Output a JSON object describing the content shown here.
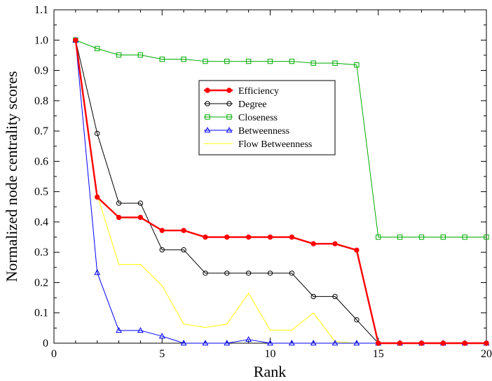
{
  "chart_data": {
    "type": "line",
    "xlabel": "Rank",
    "ylabel": "Normalized node centrality scores",
    "xlim": [
      0,
      20
    ],
    "ylim": [
      0,
      1.1
    ],
    "x_ticks": [
      "0",
      "5",
      "10",
      "15",
      "20"
    ],
    "y_ticks": [
      "0",
      "0.1",
      "0.2",
      "0.3",
      "0.4",
      "0.5",
      "0.6",
      "0.7",
      "0.8",
      "0.9",
      "1.0",
      "1.1"
    ],
    "grid": false,
    "legend_position": "center",
    "x": [
      1,
      2,
      3,
      4,
      5,
      6,
      7,
      8,
      9,
      10,
      11,
      12,
      13,
      14,
      15,
      16,
      17,
      18,
      19,
      20
    ],
    "series": [
      {
        "name": "Efficiency",
        "color": "#ff0000",
        "marker": "filled-circle",
        "values": [
          1.0,
          0.482,
          0.415,
          0.415,
          0.372,
          0.372,
          0.35,
          0.35,
          0.35,
          0.35,
          0.35,
          0.328,
          0.328,
          0.307,
          0.0,
          0.0,
          0.0,
          0.0,
          0.0,
          0.0
        ]
      },
      {
        "name": "Degree",
        "color": "#000000",
        "marker": "open-circle",
        "values": [
          1.0,
          0.692,
          0.462,
          0.462,
          0.308,
          0.308,
          0.231,
          0.231,
          0.231,
          0.231,
          0.231,
          0.154,
          0.154,
          0.077,
          0.0,
          0.0,
          0.0,
          0.0,
          0.0,
          0.0
        ]
      },
      {
        "name": "Closeness",
        "color": "#00aa00",
        "marker": "open-square",
        "values": [
          1.0,
          0.972,
          0.951,
          0.951,
          0.937,
          0.937,
          0.93,
          0.93,
          0.93,
          0.93,
          0.93,
          0.924,
          0.924,
          0.918,
          0.35,
          0.35,
          0.35,
          0.35,
          0.35,
          0.35
        ]
      },
      {
        "name": "Betweenness",
        "color": "#0000ff",
        "marker": "open-triangle",
        "values": [
          1.0,
          0.233,
          0.042,
          0.042,
          0.023,
          0.0,
          0.0,
          0.0,
          0.012,
          0.0,
          0.0,
          0.0,
          0.0,
          0.0,
          0.0,
          0.0,
          0.0,
          0.0,
          0.0,
          0.0
        ]
      },
      {
        "name": "Flow Betweenness",
        "color": "#ffff00",
        "marker": "none",
        "values": [
          1.0,
          0.49,
          0.26,
          0.26,
          0.19,
          0.063,
          0.052,
          0.063,
          0.165,
          0.043,
          0.043,
          0.1,
          0.005,
          0.0,
          0.0,
          0.0,
          0.0,
          0.0,
          0.0,
          0.0
        ]
      }
    ]
  }
}
